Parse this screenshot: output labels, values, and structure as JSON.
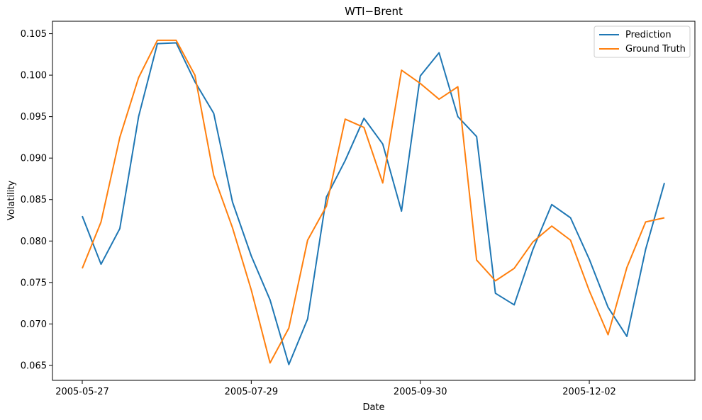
{
  "chart_data": {
    "type": "line",
    "title": "WTI−Brent",
    "xlabel": "Date",
    "ylabel": "Volatility",
    "x": [
      "2005-05-27",
      "2005-06-03",
      "2005-06-10",
      "2005-06-17",
      "2005-06-24",
      "2005-07-01",
      "2005-07-08",
      "2005-07-15",
      "2005-07-22",
      "2005-07-29",
      "2005-08-05",
      "2005-08-12",
      "2005-08-19",
      "2005-08-26",
      "2005-09-02",
      "2005-09-09",
      "2005-09-16",
      "2005-09-23",
      "2005-09-30",
      "2005-10-07",
      "2005-10-14",
      "2005-10-21",
      "2005-10-28",
      "2005-11-04",
      "2005-11-11",
      "2005-11-18",
      "2005-11-25",
      "2005-12-02",
      "2005-12-09",
      "2005-12-16",
      "2005-12-23",
      "2005-12-30"
    ],
    "xticks": [
      "2005-05-27",
      "2005-07-29",
      "2005-09-30",
      "2005-12-02"
    ],
    "ylim": [
      0.0632,
      0.1065
    ],
    "yticks": [
      "0.065",
      "0.070",
      "0.075",
      "0.080",
      "0.085",
      "0.090",
      "0.095",
      "0.100",
      "0.105"
    ],
    "ytick_values": [
      0.065,
      0.07,
      0.075,
      0.08,
      0.085,
      0.09,
      0.095,
      0.1,
      0.105
    ],
    "grid": false,
    "legend_position": "top-right",
    "series": [
      {
        "name": "Prediction",
        "color": "#1f77b4",
        "values": [
          0.083,
          0.0772,
          0.0815,
          0.095,
          0.1038,
          0.1039,
          0.0992,
          0.0954,
          0.0847,
          0.0782,
          0.0729,
          0.0651,
          0.0706,
          0.0853,
          0.0897,
          0.0948,
          0.0917,
          0.0836,
          0.0999,
          0.1027,
          0.095,
          0.0926,
          0.0737,
          0.0723,
          0.079,
          0.0844,
          0.0828,
          0.0778,
          0.072,
          0.0685,
          0.079,
          0.087
        ]
      },
      {
        "name": "Ground Truth",
        "color": "#ff7f0e",
        "values": [
          0.0767,
          0.0823,
          0.0925,
          0.0997,
          0.1042,
          0.1042,
          0.1,
          0.0879,
          0.0816,
          0.0741,
          0.0653,
          0.0695,
          0.0801,
          0.0842,
          0.0947,
          0.0937,
          0.087,
          0.1006,
          0.099,
          0.0971,
          0.0986,
          0.0777,
          0.0752,
          0.0767,
          0.0799,
          0.0818,
          0.0801,
          0.074,
          0.0687,
          0.0768,
          0.0823,
          0.0828
        ]
      }
    ]
  }
}
